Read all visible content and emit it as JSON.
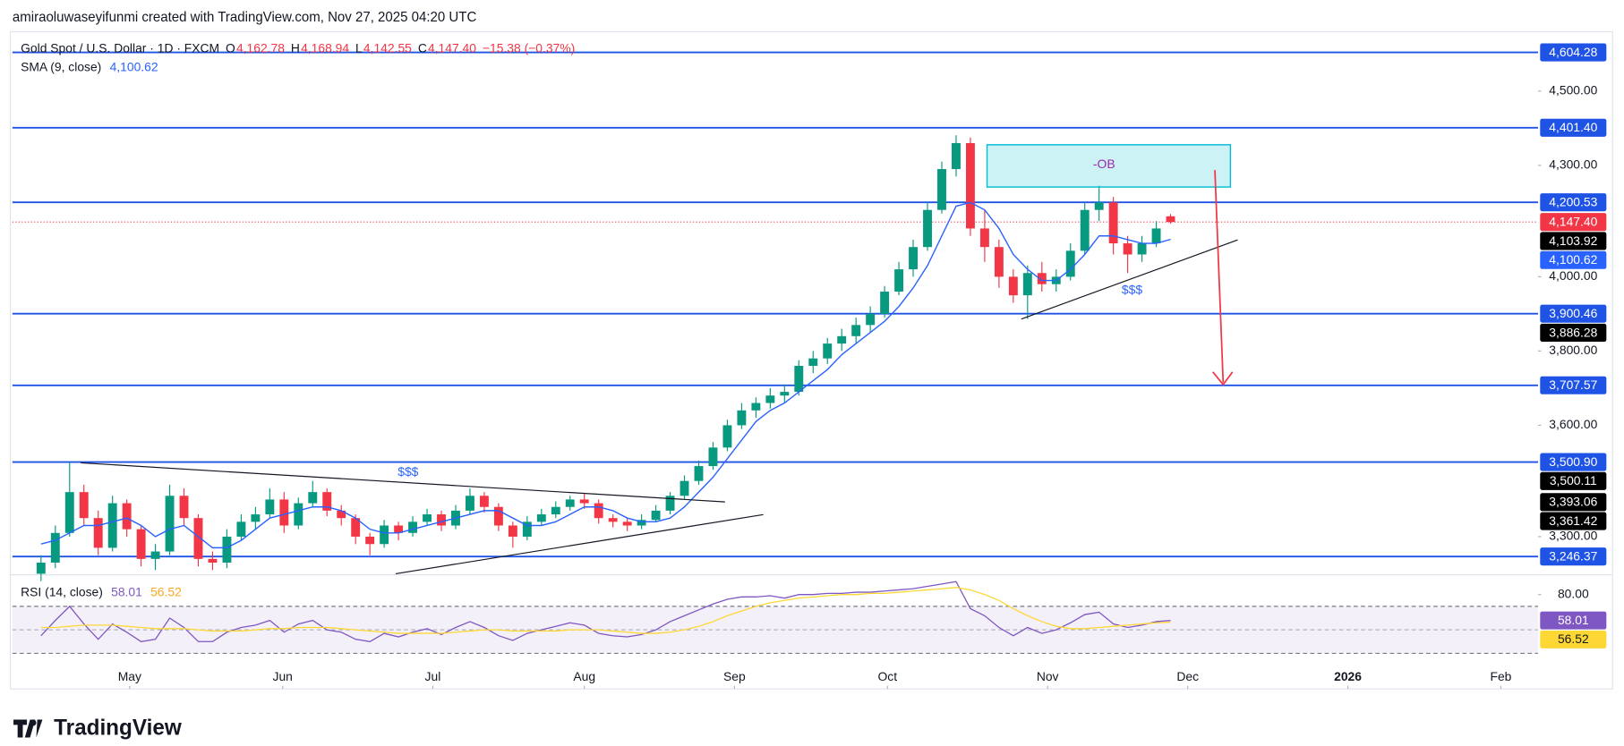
{
  "header": "amiraoluwaseyifunmi created with TradingView.com, Nov 27, 2025 04:20 UTC",
  "brand": "TradingView",
  "chart_data": [
    {
      "type": "candlestick",
      "title": "Gold Spot / U.S. Dollar · 1D · FXCM",
      "legend_values": [
        {
          "key": "O",
          "text": "4,162.78"
        },
        {
          "key": "H",
          "text": "4,168.94"
        },
        {
          "key": "L",
          "text": "4,142.55"
        },
        {
          "key": "C",
          "text": "4,147.40"
        }
      ],
      "change": "−15.38 (−0.37%)",
      "up_color": "#089981",
      "down_color": "#f23645",
      "grid": false,
      "candles": [
        [
          3200,
          3250,
          3180,
          3230
        ],
        [
          3230,
          3330,
          3215,
          3310
        ],
        [
          3310,
          3500,
          3300,
          3420
        ],
        [
          3420,
          3440,
          3330,
          3350
        ],
        [
          3350,
          3370,
          3250,
          3270
        ],
        [
          3270,
          3410,
          3260,
          3390
        ],
        [
          3390,
          3400,
          3300,
          3320
        ],
        [
          3320,
          3330,
          3220,
          3240
        ],
        [
          3240,
          3280,
          3210,
          3260
        ],
        [
          3260,
          3440,
          3250,
          3410
        ],
        [
          3410,
          3430,
          3330,
          3350
        ],
        [
          3350,
          3360,
          3220,
          3240
        ],
        [
          3240,
          3260,
          3210,
          3230
        ],
        [
          3230,
          3320,
          3215,
          3300
        ],
        [
          3300,
          3360,
          3290,
          3340
        ],
        [
          3340,
          3380,
          3320,
          3360
        ],
        [
          3360,
          3430,
          3350,
          3400
        ],
        [
          3400,
          3420,
          3310,
          3330
        ],
        [
          3330,
          3405,
          3320,
          3390
        ],
        [
          3390,
          3450,
          3380,
          3420
        ],
        [
          3420,
          3430,
          3355,
          3370
        ],
        [
          3370,
          3385,
          3330,
          3350
        ],
        [
          3350,
          3360,
          3280,
          3300
        ],
        [
          3300,
          3310,
          3250,
          3280
        ],
        [
          3280,
          3345,
          3270,
          3330
        ],
        [
          3330,
          3340,
          3290,
          3310
        ],
        [
          3310,
          3355,
          3300,
          3340
        ],
        [
          3340,
          3375,
          3330,
          3360
        ],
        [
          3360,
          3370,
          3315,
          3330
        ],
        [
          3330,
          3385,
          3320,
          3370
        ],
        [
          3370,
          3430,
          3360,
          3410
        ],
        [
          3410,
          3420,
          3365,
          3380
        ],
        [
          3380,
          3390,
          3315,
          3330
        ],
        [
          3330,
          3340,
          3270,
          3300
        ],
        [
          3300,
          3355,
          3290,
          3340
        ],
        [
          3340,
          3375,
          3330,
          3360
        ],
        [
          3360,
          3395,
          3350,
          3380
        ],
        [
          3380,
          3410,
          3370,
          3400
        ],
        [
          3400,
          3415,
          3375,
          3390
        ],
        [
          3390,
          3400,
          3335,
          3350
        ],
        [
          3350,
          3360,
          3325,
          3340
        ],
        [
          3340,
          3350,
          3315,
          3330
        ],
        [
          3330,
          3360,
          3320,
          3345
        ],
        [
          3345,
          3385,
          3340,
          3370
        ],
        [
          3370,
          3420,
          3360,
          3410
        ],
        [
          3410,
          3465,
          3400,
          3450
        ],
        [
          3450,
          3505,
          3440,
          3490
        ],
        [
          3490,
          3555,
          3480,
          3540
        ],
        [
          3540,
          3615,
          3530,
          3600
        ],
        [
          3600,
          3660,
          3590,
          3640
        ],
        [
          3640,
          3675,
          3620,
          3660
        ],
        [
          3660,
          3700,
          3645,
          3680
        ],
        [
          3680,
          3710,
          3660,
          3690
        ],
        [
          3690,
          3775,
          3680,
          3760
        ],
        [
          3760,
          3800,
          3740,
          3780
        ],
        [
          3780,
          3835,
          3765,
          3820
        ],
        [
          3820,
          3860,
          3800,
          3840
        ],
        [
          3840,
          3890,
          3820,
          3870
        ],
        [
          3870,
          3920,
          3850,
          3900
        ],
        [
          3900,
          3975,
          3890,
          3960
        ],
        [
          3960,
          4040,
          3950,
          4020
        ],
        [
          4020,
          4100,
          4000,
          4080
        ],
        [
          4080,
          4200,
          4070,
          4180
        ],
        [
          4180,
          4310,
          4170,
          4290
        ],
        [
          4290,
          4381,
          4270,
          4360
        ],
        [
          4360,
          4375,
          4110,
          4130
        ],
        [
          4130,
          4180,
          4040,
          4080
        ],
        [
          4080,
          4100,
          3970,
          4000
        ],
        [
          4000,
          4020,
          3930,
          3950
        ],
        [
          3950,
          4030,
          3886,
          4010
        ],
        [
          4010,
          4040,
          3960,
          3980
        ],
        [
          3980,
          4020,
          3960,
          4000
        ],
        [
          4000,
          4090,
          3990,
          4070
        ],
        [
          4070,
          4200,
          4060,
          4180
        ],
        [
          4180,
          4245,
          4150,
          4200
        ],
        [
          4200,
          4215,
          4060,
          4090
        ],
        [
          4090,
          4110,
          4010,
          4060
        ],
        [
          4060,
          4110,
          4040,
          4090
        ],
        [
          4090,
          4150,
          4080,
          4130
        ],
        [
          4162.78,
          4168.94,
          4142.55,
          4147.4
        ]
      ],
      "series": [
        {
          "name": "SMA (9, close)",
          "legend_value": "4,100.62",
          "color": "#2962ff",
          "values": [
            3280,
            3290,
            3310,
            3330,
            3330,
            3340,
            3350,
            3330,
            3300,
            3320,
            3330,
            3300,
            3270,
            3270,
            3290,
            3320,
            3350,
            3360,
            3370,
            3380,
            3380,
            3370,
            3350,
            3320,
            3310,
            3310,
            3320,
            3330,
            3340,
            3350,
            3360,
            3370,
            3370,
            3350,
            3330,
            3330,
            3340,
            3360,
            3380,
            3380,
            3370,
            3350,
            3340,
            3340,
            3350,
            3380,
            3420,
            3460,
            3510,
            3560,
            3610,
            3640,
            3660,
            3690,
            3720,
            3750,
            3790,
            3820,
            3850,
            3880,
            3920,
            3970,
            4030,
            4110,
            4190,
            4200,
            4180,
            4130,
            4060,
            4020,
            3990,
            3990,
            4020,
            4060,
            4110,
            4110,
            4100,
            4090,
            4090,
            4100.62
          ]
        }
      ],
      "xlim": [
        -2,
        104.7
      ],
      "xticks": [
        {
          "value": 6.2,
          "label": "May"
        },
        {
          "value": 16.9,
          "label": "Jun"
        },
        {
          "value": 27.4,
          "label": "Jul"
        },
        {
          "value": 38.0,
          "label": "Aug"
        },
        {
          "value": 48.5,
          "label": "Sep"
        },
        {
          "value": 59.2,
          "label": "Oct"
        },
        {
          "value": 70.4,
          "label": "Nov"
        },
        {
          "value": 80.2,
          "label": "Dec"
        },
        {
          "value": 91.4,
          "label": "2026"
        },
        {
          "value": 102.1,
          "label": "Feb"
        }
      ],
      "ylim": [
        3200,
        4660
      ],
      "yticks": [
        {
          "value": 3300,
          "label": "3,300.00"
        },
        {
          "value": 3600,
          "label": "3,600.00"
        },
        {
          "value": 3800,
          "label": "3,800.00"
        },
        {
          "value": 4000,
          "label": "4,000.00"
        },
        {
          "value": 4300,
          "label": "4,300.00"
        },
        {
          "value": 4500,
          "label": "4,500.00"
        }
      ],
      "level_color": "#1e53e5",
      "levels": [
        {
          "value": 4604.28,
          "label": "4,604.28"
        },
        {
          "value": 4401.4,
          "label": "4,401.40"
        },
        {
          "value": 4200.53,
          "label": "4,200.53"
        },
        {
          "value": 3900.46,
          "label": "3,900.46"
        },
        {
          "value": 3707.57,
          "label": "3,707.57"
        },
        {
          "value": 3500.9,
          "label": "3,500.90"
        },
        {
          "value": 3246.37,
          "label": "3,246.37"
        }
      ],
      "price_tags": [
        {
          "value": 4147.4,
          "label": "4,147.40",
          "color": "#f23645",
          "line": "dotted"
        },
        {
          "value": 4103.92,
          "label": "4,103.92",
          "color": "#000000"
        },
        {
          "value": 4100.62,
          "label": "4,100.62",
          "color": "#2962ff"
        },
        {
          "value": 3886.28,
          "label": "3,886.28",
          "color": "#000000"
        },
        {
          "value": 3500.11,
          "label": "3,500.11",
          "color": "#000000"
        },
        {
          "value": 3393.06,
          "label": "3,393.06",
          "color": "#000000"
        },
        {
          "value": 3361.42,
          "label": "3,361.42",
          "color": "#000000"
        }
      ],
      "annotations": [
        "-OB",
        "$$$",
        "$$$"
      ]
    },
    {
      "type": "line",
      "title": "RSI (14, close)",
      "ylim": [
        24,
        95
      ],
      "yticks": [
        {
          "value": 80,
          "label": "80.00"
        }
      ],
      "bands": [
        30,
        70
      ],
      "midline": 50,
      "series": [
        {
          "legend_value": "58.01",
          "color": "#7e57c2",
          "values": [
            45,
            58,
            70,
            55,
            42,
            55,
            48,
            40,
            42,
            60,
            52,
            40,
            40,
            48,
            52,
            54,
            58,
            48,
            55,
            58,
            50,
            48,
            42,
            40,
            47,
            44,
            48,
            51,
            46,
            52,
            57,
            52,
            45,
            41,
            47,
            50,
            53,
            56,
            54,
            47,
            45,
            44,
            46,
            50,
            57,
            62,
            67,
            72,
            76,
            78,
            78,
            79,
            77,
            80,
            80,
            81,
            81,
            82,
            82,
            83,
            84,
            85,
            87,
            89,
            91,
            68,
            62,
            52,
            45,
            52,
            47,
            50,
            56,
            63,
            65,
            55,
            52,
            54,
            57,
            58.01
          ]
        },
        {
          "legend_value": "56.52",
          "color": "#fdd835",
          "values": [
            52,
            52,
            53,
            54,
            54,
            54,
            53,
            52,
            51,
            51,
            51,
            50,
            49,
            49,
            49,
            50,
            51,
            51,
            52,
            52,
            52,
            51,
            50,
            49,
            48,
            47,
            47,
            47,
            47,
            48,
            49,
            50,
            50,
            49,
            49,
            49,
            49,
            50,
            50,
            50,
            49,
            48,
            47,
            47,
            48,
            50,
            53,
            57,
            62,
            66,
            70,
            73,
            75,
            77,
            78,
            79,
            80,
            80,
            81,
            81,
            82,
            83,
            84,
            85,
            86,
            84,
            80,
            75,
            68,
            62,
            57,
            53,
            51,
            51,
            52,
            53,
            54,
            55,
            56,
            56.52
          ]
        }
      ]
    }
  ]
}
